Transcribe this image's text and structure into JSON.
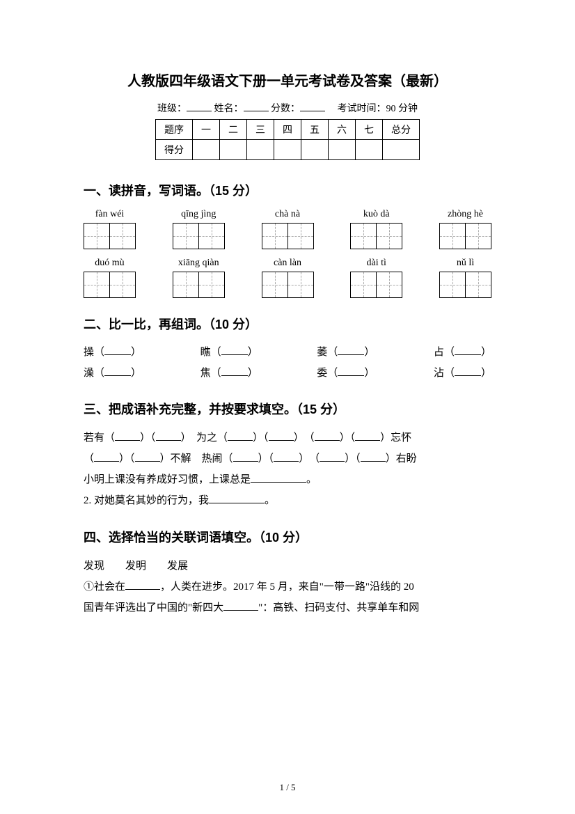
{
  "title": "人教版四年级语文下册一单元考试卷及答案（最新）",
  "meta": {
    "class_label": "班级：",
    "name_label": "姓名：",
    "score_label": "分数：",
    "time_label": "考试时间：90 分钟"
  },
  "score_table": {
    "headers": [
      "题序",
      "一",
      "二",
      "三",
      "四",
      "五",
      "六",
      "七",
      "总分"
    ],
    "row2_label": "得分"
  },
  "section1": {
    "heading": "一、读拼音，写词语。（15 分）",
    "row1": [
      "fàn wéi",
      "qīng jìng",
      "chà nà",
      "kuò dà",
      "zhòng hè"
    ],
    "row2": [
      "duó mù",
      "xiāng qiàn",
      "càn làn",
      "dài tì",
      "nǔ lì"
    ]
  },
  "section2": {
    "heading": "二、比一比，再组词。（10 分）",
    "rows": [
      [
        "操",
        "瞧",
        "萎",
        "占"
      ],
      [
        "澡",
        "焦",
        "委",
        "沾"
      ]
    ]
  },
  "section3": {
    "heading": "三、把成语补充完整，并按要求填空。（15 分）",
    "line1_a": "若有（",
    "line1_b": "）（",
    "line1_c": "）　为之（",
    "line1_d": "）（",
    "line1_e": "）　（",
    "line1_f": "）（",
    "line1_g": "）忘怀",
    "line2_a": "（",
    "line2_b": "）（",
    "line2_c": "）不解　热闹（",
    "line2_d": "）（",
    "line2_e": "）　（",
    "line2_f": "）（",
    "line2_g": "）右盼",
    "line3": "小明上课没有养成好习惯，上课总是",
    "line3_end": "。",
    "line4": "2. 对她莫名其妙的行为，我",
    "line4_end": "。"
  },
  "section4": {
    "heading": "四、选择恰当的关联词语填空。（10 分）",
    "words": "发现　　发明　　发展",
    "para_a": "①社会在",
    "para_b": "，人类在进步。2017 年 5 月，来自\"一带一路\"沿线的 20",
    "para_c": "国青年评选出了中国的\"新四大",
    "para_d": "\"：高铁、扫码支付、共享单车和网"
  },
  "page_num": "1 / 5"
}
